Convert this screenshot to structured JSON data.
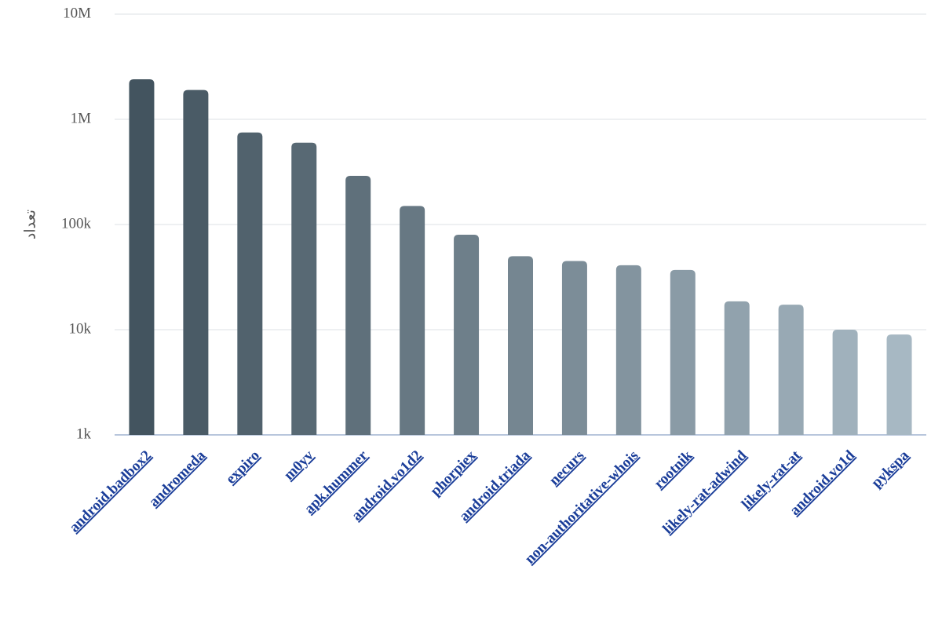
{
  "chart_data": {
    "type": "bar",
    "y_label": "تعداد",
    "categories": [
      "android.badbox2",
      "andromeda",
      "expiro",
      "m0yv",
      "apk.hummer",
      "android.vo1d2",
      "phorpiex",
      "android.triada",
      "necurs",
      "non-authoritative-whois",
      "rootnik",
      "likely-rat-adwind",
      "likely-rat-at",
      "android.vo1d",
      "pykspa"
    ],
    "values": [
      2400000,
      1900000,
      750000,
      600000,
      290000,
      150000,
      80000,
      50000,
      45000,
      41000,
      37000,
      18600,
      17300,
      10000,
      9000
    ],
    "colors": [
      "#43545f",
      "#4a5b66",
      "#51626d",
      "#586974",
      "#5f707b",
      "#677883",
      "#6e7f8a",
      "#758691",
      "#7c8d98",
      "#83949f",
      "#8a9ba6",
      "#91a2ad",
      "#98a9b4",
      "#a0b1bc",
      "#a7b8c3"
    ],
    "log_scale": true,
    "ylim": [
      1000,
      10000000
    ],
    "yticks": [
      {
        "value": 1000,
        "label": "1k"
      },
      {
        "value": 10000,
        "label": "10k"
      },
      {
        "value": 100000,
        "label": "100k"
      },
      {
        "value": 1000000,
        "label": "1M"
      },
      {
        "value": 10000000,
        "label": "10M"
      }
    ],
    "grid": true
  }
}
